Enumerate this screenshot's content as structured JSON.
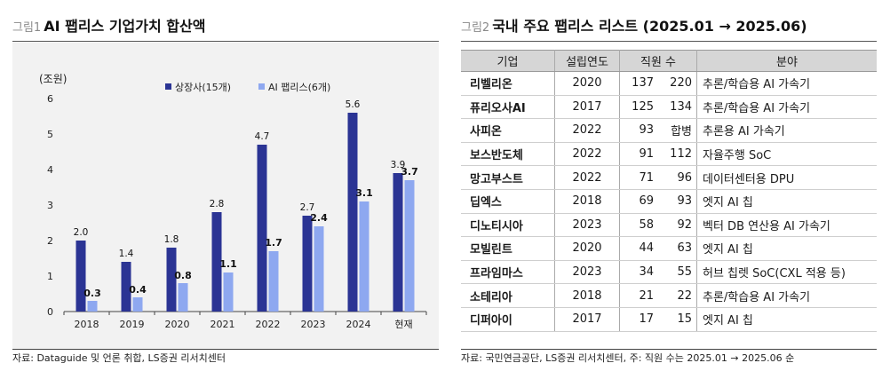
{
  "left": {
    "prefix": "그림1",
    "title": "AI 팹리스 기업가치 합산액",
    "source": "자료: Dataguide 및 언론 취합, LS증권 리서치센터"
  },
  "right": {
    "prefix": "그림2",
    "title": "국내 주요 팹리스 리스트 (2025.01 → 2025.06)",
    "source": "자료: 국민연금공단, LS증권 리서치센터, 주: 직원 수는 2025.01 → 2025.06 순",
    "headers": {
      "company": "기업",
      "year": "설립연도",
      "employees": "직원 수",
      "field": "분야"
    },
    "rows": [
      {
        "company": "리벨리온",
        "year": "2020",
        "emp1": "137",
        "emp2": "220",
        "field": "추론/학습용 AI 가속기"
      },
      {
        "company": "퓨리오사AI",
        "year": "2017",
        "emp1": "125",
        "emp2": "134",
        "field": "추론/학습용 AI 가속기"
      },
      {
        "company": "사피온",
        "year": "2022",
        "emp1": "93",
        "emp2": "합병",
        "field": "추론용 AI 가속기"
      },
      {
        "company": "보스반도체",
        "year": "2022",
        "emp1": "91",
        "emp2": "112",
        "field": "자율주행 SoC"
      },
      {
        "company": "망고부스트",
        "year": "2022",
        "emp1": "71",
        "emp2": "96",
        "field": "데이터센터용 DPU"
      },
      {
        "company": "딥엑스",
        "year": "2018",
        "emp1": "69",
        "emp2": "93",
        "field": "엣지 AI 칩"
      },
      {
        "company": "디노티시아",
        "year": "2023",
        "emp1": "58",
        "emp2": "92",
        "field": "벡터 DB 연산용 AI 가속기"
      },
      {
        "company": "모빌린트",
        "year": "2020",
        "emp1": "44",
        "emp2": "63",
        "field": "엣지 AI 칩"
      },
      {
        "company": "프라임마스",
        "year": "2023",
        "emp1": "34",
        "emp2": "55",
        "field": "허브 칩렛 SoC(CXL 적용 등)"
      },
      {
        "company": "소테리아",
        "year": "2018",
        "emp1": "21",
        "emp2": "22",
        "field": "추론/학습용 AI 가속기"
      },
      {
        "company": "디퍼아이",
        "year": "2017",
        "emp1": "17",
        "emp2": "15",
        "field": "엣지 AI 칩"
      }
    ]
  },
  "chart_data": {
    "type": "bar",
    "title": "AI 팹리스 기업가치 합산액",
    "ylabel": "(조원)",
    "xlabel": "",
    "ylim": [
      0,
      6
    ],
    "yticks": [
      "0",
      "1",
      "2",
      "3",
      "4",
      "5",
      "6"
    ],
    "categories": [
      "2018",
      "2019",
      "2020",
      "2021",
      "2022",
      "2023",
      "2024",
      "현재"
    ],
    "legend_position": "top",
    "grid": false,
    "series": [
      {
        "name": "상장사(15개)",
        "color": "#2b3494",
        "values": [
          2.0,
          1.4,
          1.8,
          2.8,
          4.7,
          2.7,
          5.6,
          3.9
        ],
        "labels": [
          "2.0",
          "1.4",
          "1.8",
          "2.8",
          "4.7",
          "2.7",
          "5.6",
          "3.9"
        ],
        "label_bold": false
      },
      {
        "name": "AI 팹리스(6개)",
        "color": "#8ea8f0",
        "values": [
          0.3,
          0.4,
          0.8,
          1.1,
          1.7,
          2.4,
          3.1,
          3.7
        ],
        "labels": [
          "0.3",
          "0.4",
          "0.8",
          "1.1",
          "1.7",
          "2.4",
          "3.1",
          "3.7"
        ],
        "label_bold": true
      }
    ]
  }
}
